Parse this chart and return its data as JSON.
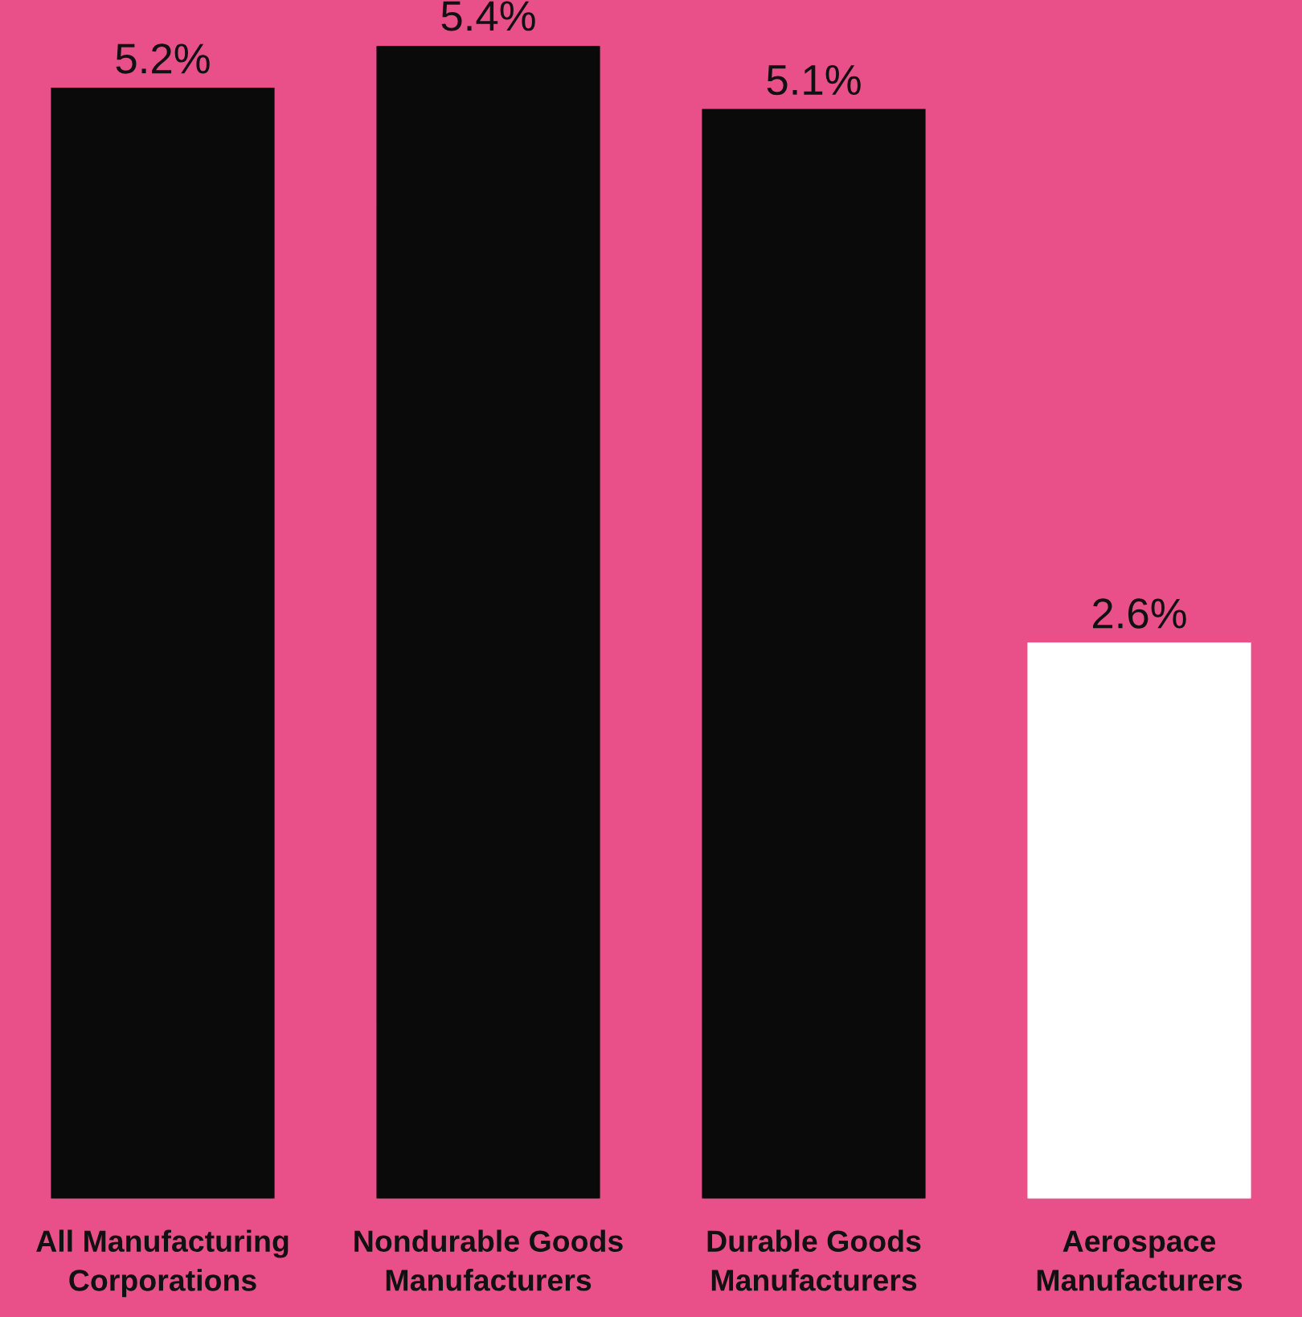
{
  "chart_data": {
    "type": "bar",
    "categories": [
      "All Manufacturing\nCorporations",
      "Nondurable Goods\nManufacturers",
      "Durable Goods\nManufacturers",
      "Aerospace\nManufacturers"
    ],
    "values": [
      5.2,
      5.4,
      5.1,
      2.6
    ],
    "value_labels": [
      "5.2%",
      "5.4%",
      "5.1%",
      "2.6%"
    ],
    "colors": [
      "#0a0a0a",
      "#0a0a0a",
      "#0a0a0a",
      "#ffffff"
    ]
  }
}
